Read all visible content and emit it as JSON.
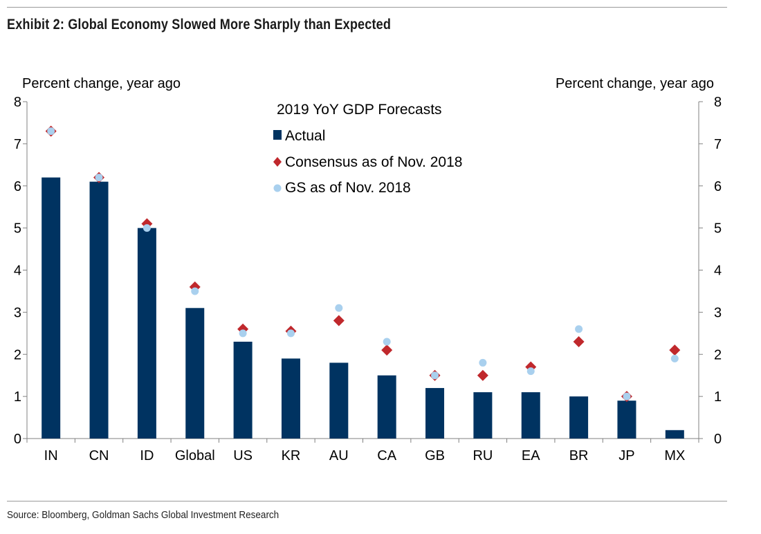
{
  "header": {
    "title": "Exhibit 2: Global Economy Slowed More Sharply than Expected"
  },
  "footer": {
    "source": "Source: Bloomberg, Goldman Sachs Global Investment Research"
  },
  "colors": {
    "actual": "#003361",
    "consensus": "#c0282c",
    "gs": "#a9d0ee",
    "axis": "#808080"
  },
  "chart_data": {
    "type": "bar",
    "title": "2019 YoY GDP Forecasts",
    "ylabel_left": "Percent change, year ago",
    "ylabel_right": "Percent change, year ago",
    "ylim": [
      0,
      8
    ],
    "yticks": [
      "0",
      "1",
      "2",
      "3",
      "4",
      "5",
      "6",
      "7",
      "8"
    ],
    "categories": [
      "IN",
      "CN",
      "ID",
      "Global",
      "US",
      "KR",
      "AU",
      "CA",
      "GB",
      "RU",
      "EA",
      "BR",
      "JP",
      "MX"
    ],
    "series": [
      {
        "name": "Actual",
        "kind": "bar",
        "values": [
          6.2,
          6.1,
          5.0,
          3.1,
          2.3,
          1.9,
          1.8,
          1.5,
          1.2,
          1.1,
          1.1,
          1.0,
          0.9,
          0.2
        ]
      },
      {
        "name": "Consensus as of Nov. 2018",
        "kind": "diamond",
        "values": [
          7.3,
          6.2,
          5.1,
          3.6,
          2.6,
          2.55,
          2.8,
          2.1,
          1.5,
          1.5,
          1.7,
          2.3,
          1.0,
          2.1
        ]
      },
      {
        "name": "GS as of Nov. 2018",
        "kind": "dot",
        "values": [
          7.3,
          6.2,
          5.0,
          3.5,
          2.5,
          2.5,
          3.1,
          2.3,
          1.5,
          1.8,
          1.6,
          2.6,
          1.0,
          1.9
        ]
      }
    ],
    "legend_position": "top-center"
  }
}
